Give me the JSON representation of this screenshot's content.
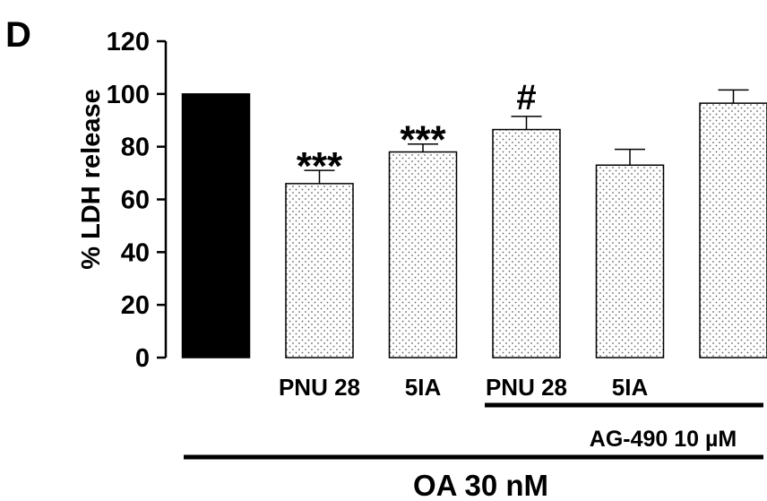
{
  "panel_label": "D",
  "chart_data": {
    "type": "bar",
    "ylabel": "% LDH release",
    "ylim": [
      0,
      120
    ],
    "yticks": [
      0,
      20,
      40,
      60,
      80,
      100,
      120
    ],
    "categories": [
      "",
      "PNU 28",
      "5IA",
      "PNU 28",
      "5IA",
      ""
    ],
    "values": [
      100,
      66,
      78,
      86.5,
      73,
      96.5
    ],
    "errors": [
      0,
      5,
      3,
      5,
      6,
      5
    ],
    "fills": [
      "solid-black",
      "dotted",
      "dotted",
      "dotted",
      "dotted",
      "dotted"
    ],
    "annotations": [
      "",
      "***",
      "***",
      "#",
      "",
      ""
    ],
    "treatment_bars": [
      {
        "label": "AG-490 10 µM",
        "from_index": 3,
        "to_index": 5
      },
      {
        "label": "OA 30 nM",
        "from_index": 0,
        "to_index": 5
      }
    ],
    "colors": {
      "bar_solid": "#000000",
      "bar_dotted_bg": "#ffffff",
      "dot": "#666666",
      "axis": "#000000"
    }
  }
}
